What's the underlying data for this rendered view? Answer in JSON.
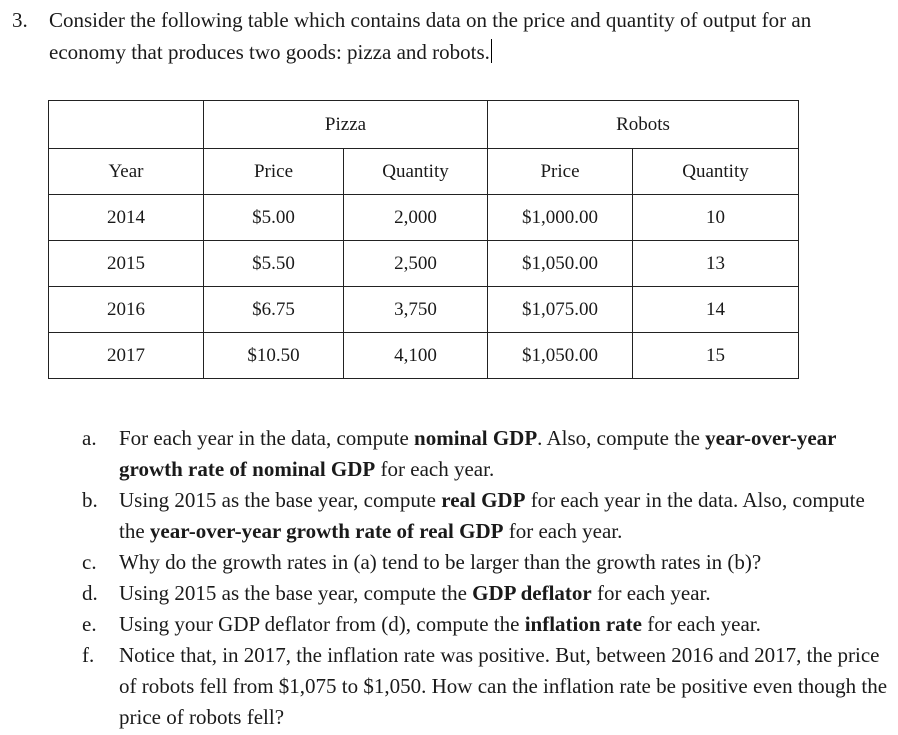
{
  "question": {
    "number": "3.",
    "text": "Consider the following table which contains data on the price and quantity of output for an economy that produces two goods: pizza and robots."
  },
  "table": {
    "groups": [
      "Pizza",
      "Robots"
    ],
    "columns": [
      "Year",
      "Price",
      "Quantity",
      "Price",
      "Quantity"
    ],
    "rows": [
      [
        "2014",
        "$5.00",
        "2,000",
        "$1,000.00",
        "10"
      ],
      [
        "2015",
        "$5.50",
        "2,500",
        "$1,050.00",
        "13"
      ],
      [
        "2016",
        "$6.75",
        "3,750",
        "$1,075.00",
        "14"
      ],
      [
        "2017",
        "$10.50",
        "4,100",
        "$1,050.00",
        "15"
      ]
    ]
  },
  "parts": [
    {
      "label": "a.",
      "segments": [
        {
          "t": "For each year in the data, compute ",
          "b": false
        },
        {
          "t": "nominal GDP",
          "b": true
        },
        {
          "t": ". Also, compute the ",
          "b": false
        },
        {
          "t": "year-over-year growth rate of nominal GDP",
          "b": true
        },
        {
          "t": " for each year.",
          "b": false
        }
      ]
    },
    {
      "label": "b.",
      "segments": [
        {
          "t": "Using 2015 as the base year, compute ",
          "b": false
        },
        {
          "t": "real GDP",
          "b": true
        },
        {
          "t": " for each year in the data. Also, compute the ",
          "b": false
        },
        {
          "t": "year-over-year growth rate of real GDP",
          "b": true
        },
        {
          "t": " for each year.",
          "b": false
        }
      ]
    },
    {
      "label": "c.",
      "segments": [
        {
          "t": "Why do the growth rates in (a) tend to be larger than the growth rates in (b)?",
          "b": false
        }
      ]
    },
    {
      "label": "d.",
      "segments": [
        {
          "t": "Using 2015 as the base year, compute the ",
          "b": false
        },
        {
          "t": "GDP deflator",
          "b": true
        },
        {
          "t": " for each year.",
          "b": false
        }
      ]
    },
    {
      "label": "e.",
      "segments": [
        {
          "t": "Using your GDP deflator from (d), compute the ",
          "b": false
        },
        {
          "t": "inflation rate",
          "b": true
        },
        {
          "t": " for each year.",
          "b": false
        }
      ]
    },
    {
      "label": "f.",
      "segments": [
        {
          "t": "Notice that, in 2017, the inflation rate was positive. But, between 2016 and 2017, the price of robots fell from $1,075 to $1,050. How can the inflation rate be positive even though the price of robots fell?",
          "b": false
        }
      ]
    }
  ]
}
